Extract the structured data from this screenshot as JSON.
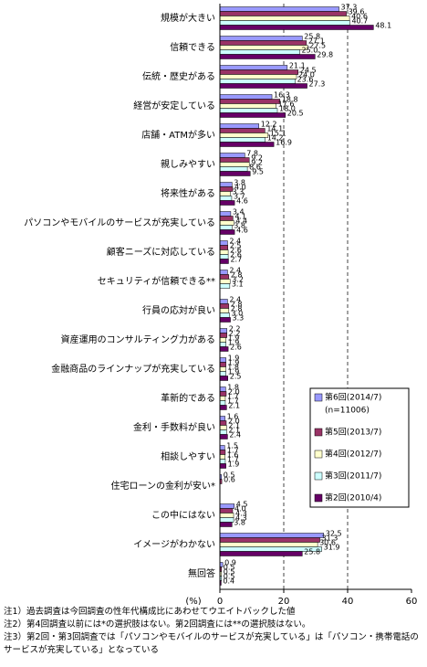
{
  "chart_data": {
    "type": "hbar",
    "categories": [
      "規模が大きい",
      "信頼できる",
      "伝統・歴史がある",
      "経営が安定している",
      "店舗・ATMが多い",
      "親しみやすい",
      "将来性がある",
      "パソコンやモバイルのサービスが充実している",
      "顧客ニーズに対応している",
      "セキュリティが信頼できる**",
      "行員の応対が良い",
      "資産運用のコンサルティング力がある",
      "金融商品のラインナップが充実している",
      "革新的である",
      "金利・手数料が良い",
      "相談しやすい",
      "住宅ローンの金利が安い*",
      "この中にはない",
      "イメージがわかない",
      "無回答"
    ],
    "series": [
      {
        "name": "第6回(2014/7)",
        "note": "(n=11006)",
        "color": "#9999ff",
        "values": [
          37.3,
          25.8,
          21.1,
          16.3,
          12.2,
          7.8,
          3.8,
          3.4,
          2.4,
          2.4,
          2.4,
          2.2,
          1.9,
          1.8,
          1.6,
          1.5,
          0.5,
          4.5,
          32.5,
          0.9
        ],
        "value_labels": [
          "37.3",
          "25.8",
          "21.1",
          "16.3",
          "12.2",
          "7.8",
          "3.8",
          "3.4",
          "2.4",
          "2.4",
          "2.4",
          "2.2",
          "1.9",
          "1.8",
          "1.6",
          "1.5",
          "0.5",
          "4.5",
          "32.5",
          "0.9"
        ]
      },
      {
        "name": "第5回(2013/7)",
        "color": "#993366",
        "values": [
          39.6,
          27.1,
          24.5,
          18.8,
          14.1,
          9.2,
          4.0,
          4.1,
          2.5,
          2.8,
          2.8,
          2.2,
          1.9,
          2.0,
          2.0,
          1.7,
          0.6,
          4.0,
          31.3,
          0.5
        ],
        "value_labels": [
          "39.6",
          "27.1",
          "24.5",
          "18.8",
          "14.1",
          "9.2",
          "4.0",
          "4.1",
          "2.5",
          "2.8",
          "2.8",
          "2.2",
          "1.9",
          "2.0",
          "2.0",
          "1.7",
          "0.6",
          "4.0",
          "31.3",
          "0.5"
        ]
      },
      {
        "name": "第4回(2012/7)",
        "color": "#ffffcc",
        "values": [
          40.6,
          27.5,
          24.0,
          17.6,
          15.1,
          9.2,
          3.3,
          4.4,
          2.6,
          3.2,
          2.8,
          1.9,
          1.8,
          1.7,
          2.1,
          1.6,
          null,
          4.3,
          30.6,
          0.5
        ],
        "value_labels": [
          "40.6",
          "27.5",
          "24.0",
          "17.6",
          "15.1",
          "9.2",
          "3.3",
          "4.4",
          "2.6",
          "3.2",
          "2.8",
          "1.9",
          "1.8",
          "1.7",
          "2.1",
          "1.6",
          null,
          "4.3",
          "30.6",
          "0.5"
        ]
      },
      {
        "name": "第3回(2011/7)",
        "color": "#ccffff",
        "values": [
          40.7,
          25.0,
          23.6,
          18.0,
          14.2,
          8.6,
          3.7,
          3.8,
          2.6,
          3.1,
          3.0,
          1.9,
          1.9,
          1.7,
          2.1,
          1.7,
          null,
          4.3,
          31.9,
          0.5
        ],
        "value_labels": [
          "40.7",
          "25.0",
          "23.6",
          "18.0",
          "14.2",
          "8.6",
          "3.7",
          "3.8",
          "2.6",
          "3.1",
          "3.0",
          "1.9",
          "1.9",
          "1.7",
          "2.1",
          "1.7",
          null,
          "4.3",
          "31.9",
          "0.5"
        ]
      },
      {
        "name": "第2回(2010/4)",
        "color": "#660066",
        "values": [
          48.1,
          29.8,
          27.3,
          20.5,
          16.9,
          9.5,
          4.6,
          4.6,
          2.7,
          null,
          3.3,
          2.6,
          2.5,
          2.1,
          2.4,
          1.9,
          null,
          3.8,
          25.8,
          0.4
        ],
        "value_labels": [
          "48.1",
          "29.8",
          "27.3",
          "20.5",
          "16.9",
          "9.5",
          "4.6",
          "4.6",
          "2.7",
          null,
          "3.3",
          "2.6",
          "2.5",
          "2.1",
          "2.4",
          "1.9",
          null,
          "3.8",
          "25.8",
          "0.4"
        ]
      }
    ],
    "x_label": "(%)",
    "xlim": [
      0,
      60
    ],
    "xticks": [
      0,
      20,
      40,
      60
    ],
    "grid": true,
    "notes": [
      "注1）過去調査は今回調査の性年代構成比にあわせてウエイトバックした値",
      "注2）第4回調査以前には*の選択肢はない。第2回調査には**の選択肢はない。",
      "注3）第2回・第3回調査では「パソコンやモバイルのサービスが充実している」は「パソコン・携帯電話のサービスが充実している」となっている"
    ]
  }
}
